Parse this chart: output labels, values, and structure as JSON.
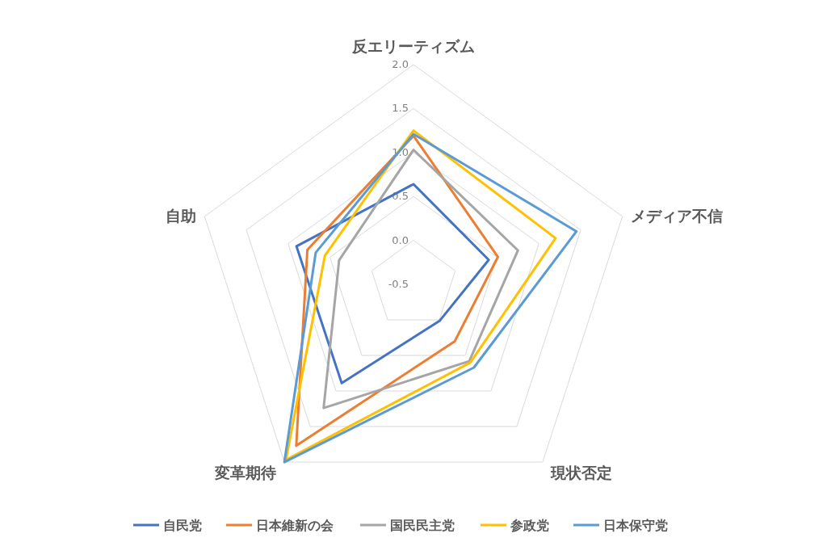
{
  "chart_data": {
    "type": "radar",
    "categories": [
      "反エリーティズム",
      "メディア不信",
      "現状否定",
      "変革期待",
      "自助"
    ],
    "ylim": [
      -0.5,
      2.0
    ],
    "yticks": [
      {
        "value": -0.5,
        "label": "-0.5"
      },
      {
        "value": 0,
        "label": "0.0"
      },
      {
        "value": 0.5,
        "label": "0.5"
      },
      {
        "value": 1,
        "label": "1.0"
      },
      {
        "value": 1.5,
        "label": "1.5"
      },
      {
        "value": 2,
        "label": "2.0"
      }
    ],
    "grid": true,
    "legend": "bottom",
    "series": [
      {
        "name": "自民党",
        "color": "#4472c4",
        "values": [
          0.64,
          0.4,
          0.01,
          0.89,
          0.9
        ]
      },
      {
        "name": "日本維新の会",
        "color": "#ed7d31",
        "values": [
          1.19,
          0.51,
          0.3,
          1.77,
          0.77
        ]
      },
      {
        "name": "国民民主党",
        "color": "#a5a5a5",
        "values": [
          1.03,
          0.75,
          0.58,
          1.24,
          0.39
        ]
      },
      {
        "name": "参政党",
        "color": "#ffc000",
        "values": [
          1.25,
          1.2,
          0.6,
          1.97,
          0.56
        ]
      },
      {
        "name": "日本保守党",
        "color": "#5b9bd5",
        "values": [
          1.21,
          1.45,
          0.67,
          2.0,
          0.67
        ]
      }
    ]
  }
}
